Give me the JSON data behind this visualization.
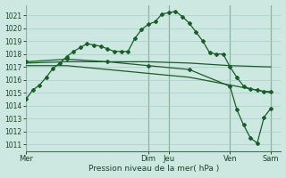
{
  "bg_color": "#cce8e0",
  "grid_color": "#aacec6",
  "line_color": "#1a5c2a",
  "marker_color": "#1a5c2a",
  "ylim": [
    1010.5,
    1021.8
  ],
  "yticks": [
    1011,
    1012,
    1013,
    1014,
    1015,
    1016,
    1017,
    1018,
    1019,
    1020,
    1021
  ],
  "day_labels": [
    "Mer",
    "Dim",
    "Jeu",
    "Ven",
    "Sam"
  ],
  "day_tick_positions": [
    0,
    72,
    84,
    120,
    144
  ],
  "vline_positions": [
    0,
    72,
    84,
    120,
    144
  ],
  "xlim": [
    0,
    150
  ],
  "series1_x": [
    0,
    4,
    8,
    12,
    16,
    20,
    24,
    28,
    32,
    36,
    40,
    44,
    48,
    52,
    56,
    60,
    64,
    68,
    72,
    76,
    80,
    84,
    88,
    92,
    96,
    100,
    104,
    108,
    112,
    116,
    120,
    124,
    128,
    132,
    136,
    140,
    144
  ],
  "series1_y": [
    1014.5,
    1015.2,
    1015.6,
    1016.2,
    1016.9,
    1017.3,
    1017.8,
    1018.2,
    1018.5,
    1018.8,
    1018.7,
    1018.6,
    1018.4,
    1018.2,
    1018.2,
    1018.2,
    1019.2,
    1019.9,
    1020.3,
    1020.5,
    1021.1,
    1021.2,
    1021.3,
    1020.9,
    1020.4,
    1019.7,
    1019.0,
    1018.1,
    1018.0,
    1018.0,
    1017.0,
    1016.2,
    1015.5,
    1015.3,
    1015.2,
    1015.1,
    1015.1
  ],
  "series2_x": [
    0,
    24,
    48,
    72,
    96,
    120,
    144
  ],
  "series2_y": [
    1017.3,
    1017.4,
    1017.4,
    1017.4,
    1017.3,
    1017.1,
    1017.0
  ],
  "series3_x": [
    0,
    24,
    48,
    72,
    96,
    120,
    144
  ],
  "series3_y": [
    1017.1,
    1017.1,
    1016.8,
    1016.5,
    1016.2,
    1015.6,
    1015.0
  ],
  "series4_x": [
    0,
    24,
    48,
    72,
    96,
    120,
    124,
    128,
    132,
    136,
    140,
    144
  ],
  "series4_y": [
    1017.4,
    1017.6,
    1017.4,
    1017.1,
    1016.8,
    1015.5,
    1013.7,
    1012.5,
    1011.5,
    1011.1,
    1013.1,
    1013.8
  ],
  "xlabel": "Pression niveau de la mer( hPa )"
}
